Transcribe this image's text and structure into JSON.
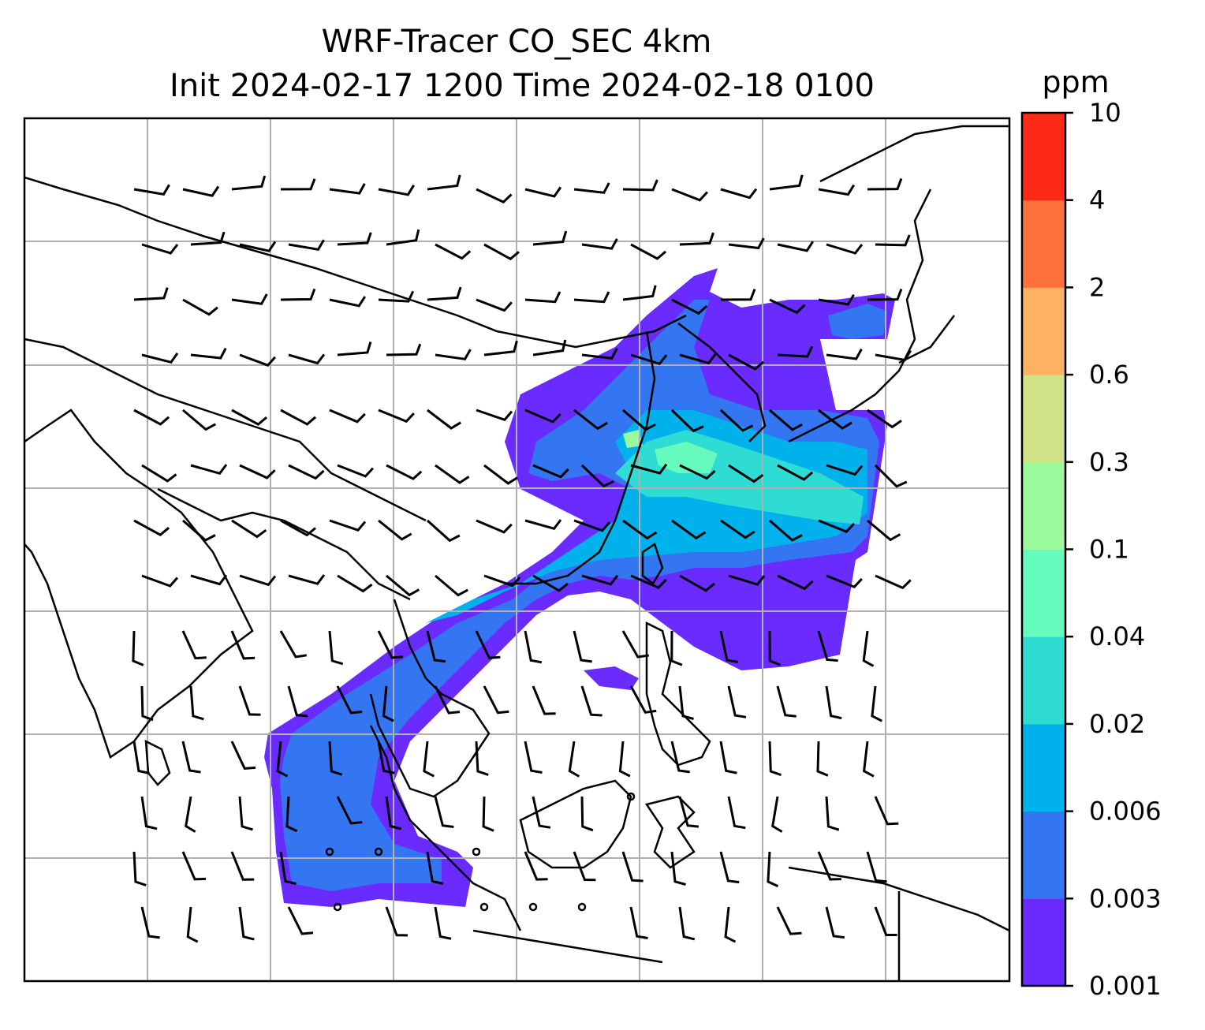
{
  "title_line1": "WRF-Tracer CO_SEC 4km",
  "title_line2": "Init 2024-02-17 1200 Time 2024-02-18 0100",
  "colorbar": {
    "unit": "ppm",
    "tick_labels": [
      "0.001",
      "0.003",
      "0.006",
      "0.02",
      "0.04",
      "0.1",
      "0.3",
      "0.6",
      "2",
      "4",
      "10"
    ],
    "colors": [
      "#6a2bff",
      "#3475f2",
      "#01b1eb",
      "#2edcd4",
      "#66fbbc",
      "#9afa9b",
      "#cfe285",
      "#fdb163",
      "#fe713c",
      "#fe2a18"
    ]
  },
  "map": {
    "gridlines": true,
    "gridline_color": "#b0b0b0",
    "coastline_color": "#000000",
    "features": [
      "coastlines",
      "country-borders",
      "wind-barbs",
      "co-tracer-plume"
    ]
  }
}
